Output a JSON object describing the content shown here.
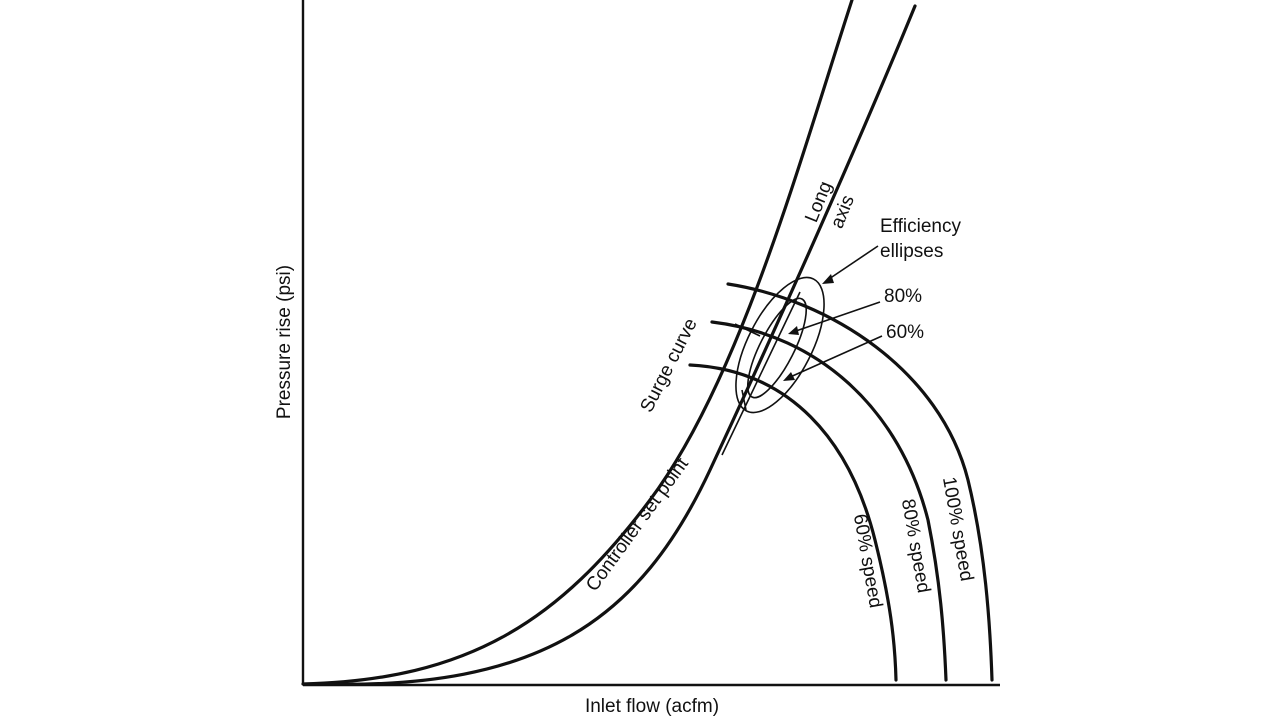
{
  "axes": {
    "x_label": "Inlet flow (acfm)",
    "y_label": "Pressure rise (psi)"
  },
  "curves": {
    "surge": "Surge curve",
    "controller": "Controller set point",
    "long_axis_line1": "Long",
    "long_axis_line2": "axis"
  },
  "speeds": {
    "s60": "60% speed",
    "s80": "80% speed",
    "s100": "100% speed"
  },
  "efficiency": {
    "title_line1": "Efficiency",
    "title_line2": "ellipses",
    "e80": "80%",
    "e60": "60%"
  },
  "colors": {
    "line": "#111111",
    "background": "#ffffff"
  }
}
